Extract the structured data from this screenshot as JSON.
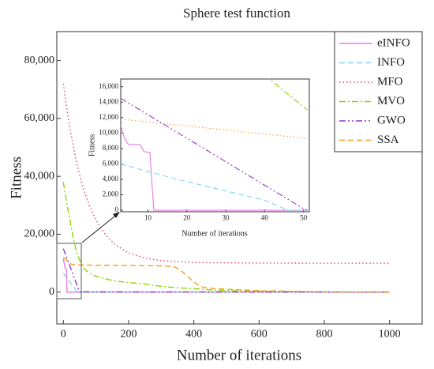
{
  "chart_data": [
    {
      "type": "line",
      "title": "Sphere test function",
      "xlabel": "Number of iterations",
      "ylabel": "Fitness",
      "xlim": [
        -20,
        1100
      ],
      "ylim": [
        -11000,
        90000
      ],
      "xticks": [
        0,
        200,
        400,
        600,
        800,
        1000
      ],
      "yticks": [
        0,
        {
          "value": 20000,
          "label": "20,000"
        },
        {
          "value": 40000,
          "label": "40,000"
        },
        {
          "value": 60000,
          "label": "60,000"
        },
        {
          "value": 80000,
          "label": "80,000"
        }
      ],
      "legend": "upper right",
      "series": [
        {
          "name": "eINFO",
          "color": "#e67be0",
          "linestyle": "solid",
          "x": [
            0,
            5,
            10,
            11,
            20,
            1000
          ],
          "values": [
            11500,
            8500,
            7500,
            0,
            0,
            0
          ]
        },
        {
          "name": "INFO",
          "color": "#7fd6ea",
          "linestyle": "dashed",
          "x": [
            0,
            10,
            20,
            30,
            45,
            1000
          ],
          "values": [
            6500,
            5000,
            3500,
            2000,
            0,
            0
          ]
        },
        {
          "name": "MFO",
          "color": "#e0408a",
          "linestyle": "dotted",
          "x": [
            0,
            20,
            40,
            60,
            80,
            100,
            130,
            160,
            200,
            250,
            300,
            400,
            600,
            800,
            1000
          ],
          "values": [
            72000,
            56600,
            45000,
            36300,
            29800,
            24900,
            19700,
            16300,
            13550,
            11750,
            10870,
            10200,
            10050,
            10000,
            10000
          ]
        },
        {
          "name": "MVO",
          "color": "#8fd400",
          "linestyle": "dashdot",
          "x": [
            0,
            10,
            20,
            30,
            40,
            50,
            60,
            80,
            100,
            150,
            200,
            250,
            300,
            350,
            400,
            450,
            500,
            600,
            800,
            1000
          ],
          "values": [
            38000,
            31000,
            25000,
            19000,
            14000,
            11000,
            8500,
            6500,
            5500,
            4000,
            3300,
            2800,
            2000,
            1500,
            1200,
            800,
            500,
            300,
            100,
            50
          ]
        },
        {
          "name": "GWO",
          "color": "#9933cc",
          "linestyle": "dashdotdot",
          "x": [
            0,
            10,
            20,
            30,
            40,
            50,
            1000
          ],
          "values": [
            15000,
            12000,
            9000,
            6000,
            3000,
            100,
            0
          ]
        },
        {
          "name": "SSA",
          "color": "#f0a020",
          "linestyle": "dashed",
          "x": [
            0,
            10,
            25,
            50,
            100,
            200,
            300,
            340,
            360,
            380,
            400,
            420,
            440,
            500,
            600,
            800,
            1000
          ],
          "values": [
            12000,
            11000,
            9600,
            9400,
            9300,
            9200,
            9100,
            8800,
            7500,
            5500,
            3500,
            2000,
            1400,
            1000,
            500,
            100,
            50
          ]
        }
      ]
    },
    {
      "type": "line",
      "xlabel": "Number of iterations",
      "ylabel": "Fitness",
      "xlim": [
        3,
        51.5
      ],
      "ylim": [
        -200,
        17000
      ],
      "xticks": [
        10,
        20,
        30,
        40,
        50
      ],
      "yticks": [
        0,
        {
          "value": 2000,
          "label": "2,000"
        },
        {
          "value": 4000,
          "label": "4,000"
        },
        {
          "value": 6000,
          "label": "6,000"
        },
        {
          "value": 8000,
          "label": "8,000"
        },
        {
          "value": 10000,
          "label": "10,000"
        },
        {
          "value": 12000,
          "label": "12,000"
        },
        {
          "value": 14000,
          "label": "14,000"
        },
        {
          "value": 16000,
          "label": "16,000"
        }
      ],
      "series": [
        {
          "color": "#e67be0",
          "linestyle": "solid",
          "x": [
            3,
            4,
            5,
            6,
            8,
            9,
            10,
            10.5,
            11.5,
            12,
            51
          ],
          "values": [
            11000,
            9300,
            8500,
            8500,
            8500,
            7600,
            7500,
            7500,
            0,
            0,
            0
          ]
        },
        {
          "color": "#7fd6ea",
          "linestyle": "dashed",
          "x": [
            3,
            10,
            20,
            30,
            40,
            46,
            51
          ],
          "values": [
            6000,
            5000,
            3700,
            2500,
            1300,
            0,
            0
          ]
        },
        {
          "color": "#8fd400",
          "linestyle": "dashdot",
          "x": [
            40,
            51
          ],
          "values": [
            17500,
            13000
          ]
        },
        {
          "color": "#9933cc",
          "linestyle": "dashdotdot",
          "x": [
            3,
            50,
            51
          ],
          "values": [
            14500,
            200,
            0
          ]
        },
        {
          "color": "#f0a020",
          "linestyle": "dotted",
          "x": [
            3,
            51
          ],
          "values": [
            11800,
            9300
          ]
        }
      ]
    }
  ]
}
